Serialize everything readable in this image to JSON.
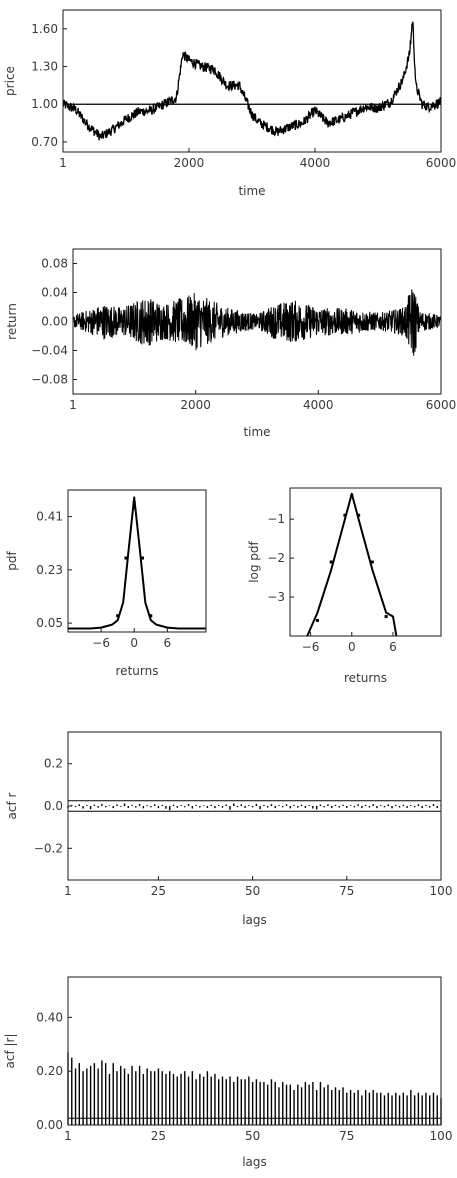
{
  "colors": {
    "line": "#000000",
    "frame": "#1a1a1a",
    "text": "#3a3a3a",
    "background": "#ffffff"
  },
  "chart_data": [
    {
      "id": "price",
      "type": "line",
      "title": "",
      "xlabel": "time",
      "ylabel": "price",
      "xlim": [
        1,
        6000
      ],
      "ylim": [
        0.62,
        1.75
      ],
      "xticks": [
        1,
        2000,
        4000,
        6000
      ],
      "xtick_labels": [
        "1",
        "2000",
        "4000",
        "6000"
      ],
      "yticks": [
        0.7,
        1.0,
        1.3,
        1.6
      ],
      "ytick_labels": [
        "0.70",
        "1.00",
        "1.30",
        "1.60"
      ],
      "reference_line": 1.0,
      "grid": false,
      "series": [
        {
          "x": [
            1,
            200,
            400,
            600,
            800,
            1000,
            1200,
            1400,
            1600,
            1800,
            1900,
            2000,
            2200,
            2400,
            2600,
            2800,
            3000,
            3100,
            3200,
            3400,
            3600,
            3800,
            4000,
            4200,
            4400,
            4600,
            4800,
            5000,
            5200,
            5400,
            5500,
            5550,
            5600,
            5700,
            5800,
            6000
          ],
          "y": [
            1.0,
            0.96,
            0.83,
            0.74,
            0.8,
            0.88,
            0.94,
            0.95,
            1.0,
            1.05,
            1.4,
            1.35,
            1.3,
            1.28,
            1.15,
            1.15,
            0.92,
            0.86,
            0.83,
            0.78,
            0.82,
            0.85,
            0.95,
            0.85,
            0.88,
            0.93,
            0.98,
            0.97,
            1.02,
            1.2,
            1.4,
            1.68,
            1.15,
            1.0,
            0.98,
            1.02
          ]
        }
      ]
    },
    {
      "id": "return",
      "type": "line",
      "title": "",
      "xlabel": "time",
      "ylabel": "return",
      "xlim": [
        1,
        6000
      ],
      "ylim": [
        -0.1,
        0.1
      ],
      "xticks": [
        1,
        2000,
        4000,
        6000
      ],
      "xtick_labels": [
        "1",
        "2000",
        "4000",
        "6000"
      ],
      "yticks": [
        -0.08,
        -0.04,
        0.0,
        0.04,
        0.08
      ],
      "ytick_labels": [
        "−0.08",
        "−0.04",
        "0.00",
        "0.04",
        "0.08"
      ],
      "grid": false,
      "series": [
        {
          "x": [
            1,
            500,
            800,
            1200,
            1500,
            2000,
            2500,
            3000,
            3300,
            3600,
            4000,
            4500,
            5000,
            5400,
            5550,
            5650,
            6000
          ],
          "amplitude": [
            0.008,
            0.025,
            0.02,
            0.035,
            0.025,
            0.04,
            0.02,
            0.01,
            0.025,
            0.03,
            0.02,
            0.018,
            0.012,
            0.02,
            0.055,
            0.015,
            0.008
          ]
        }
      ]
    },
    {
      "id": "pdf",
      "type": "line",
      "title": "",
      "xlabel": "returns",
      "ylabel": "pdf",
      "xlim": [
        -12,
        13
      ],
      "ylim": [
        0.02,
        0.5
      ],
      "xticks": [
        -6,
        0,
        6
      ],
      "xtick_labels": [
        "−6",
        "0",
        "6"
      ],
      "yticks": [
        0.05,
        0.23,
        0.41
      ],
      "ytick_labels": [
        "0.05",
        "0.23",
        "0.41"
      ],
      "grid": false,
      "series": [
        {
          "x": [
            -12,
            -8,
            -6,
            -4,
            -3,
            -2,
            -1,
            0,
            1,
            2,
            3,
            4,
            6,
            8,
            13
          ],
          "y": [
            0.032,
            0.032,
            0.035,
            0.045,
            0.06,
            0.12,
            0.3,
            0.475,
            0.3,
            0.12,
            0.06,
            0.045,
            0.035,
            0.032,
            0.032
          ]
        }
      ],
      "points": {
        "x": [
          -1.5,
          0,
          1.5,
          -3,
          3
        ],
        "y": [
          0.27,
          0.44,
          0.27,
          0.075,
          0.075
        ]
      }
    },
    {
      "id": "log-pdf",
      "type": "line",
      "title": "",
      "xlabel": "returns",
      "ylabel": "log pdf",
      "xlim": [
        -9,
        13
      ],
      "ylim": [
        -4.0,
        -0.2
      ],
      "xticks": [
        -6,
        0,
        6
      ],
      "xtick_labels": [
        "−6",
        "0",
        "6"
      ],
      "yticks": [
        -3,
        -2,
        -1
      ],
      "ytick_labels": [
        "−3",
        "−2",
        "−1"
      ],
      "grid": false,
      "series": [
        {
          "x": [
            -6.5,
            -5,
            -3,
            -1,
            0,
            1,
            3,
            5,
            6,
            6.5
          ],
          "y": [
            -4.0,
            -3.4,
            -2.3,
            -1.0,
            -0.35,
            -1.0,
            -2.3,
            -3.4,
            -3.5,
            -4.0
          ]
        }
      ],
      "points": {
        "x": [
          -3,
          -1,
          0,
          1,
          3,
          -5,
          5
        ],
        "y": [
          -2.1,
          -0.9,
          -0.4,
          -0.9,
          -2.1,
          -3.6,
          -3.5
        ]
      }
    },
    {
      "id": "acf-r",
      "type": "bar",
      "title": "",
      "xlabel": "lags",
      "ylabel": "acf r",
      "xlim": [
        1,
        100
      ],
      "ylim": [
        -0.35,
        0.35
      ],
      "xticks": [
        1,
        25,
        50,
        75,
        100
      ],
      "xtick_labels": [
        "1",
        "25",
        "50",
        "75",
        "100"
      ],
      "yticks": [
        -0.2,
        0.0,
        0.2
      ],
      "ytick_labels": [
        "−0.2",
        "0.0",
        "0.2"
      ],
      "confidence_band": 0.025,
      "grid": false,
      "values": [
        -0.01,
        0.005,
        -0.005,
        0.008,
        -0.012,
        0.004,
        -0.015,
        0.006,
        -0.008,
        0.01,
        -0.006,
        0.003,
        -0.01,
        0.007,
        -0.004,
        0.012,
        -0.009,
        0.005,
        -0.007,
        0.009,
        -0.011,
        0.004,
        -0.006,
        0.008,
        -0.01,
        0.005,
        -0.013,
        -0.02,
        0.006,
        -0.008,
        0.004,
        -0.006,
        0.009,
        -0.012,
        0.005,
        -0.007,
        0.003,
        -0.009,
        0.006,
        -0.01,
        0.004,
        -0.008,
        0.007,
        -0.018,
        0.012,
        -0.005,
        0.008,
        -0.009,
        0.004,
        -0.006,
        0.01,
        -0.015,
        0.005,
        -0.007,
        0.009,
        -0.01,
        0.004,
        -0.006,
        0.008,
        -0.011,
        0.005,
        -0.008,
        0.006,
        -0.009,
        0.004,
        -0.012,
        -0.016,
        0.007,
        -0.006,
        0.008,
        -0.01,
        0.005,
        -0.007,
        0.006,
        -0.009,
        0.004,
        -0.006,
        0.008,
        -0.01,
        0.005,
        -0.007,
        0.009,
        -0.01,
        0.004,
        -0.006,
        0.008,
        -0.011,
        0.005,
        -0.007,
        0.006,
        -0.009,
        0.004,
        -0.006,
        0.008,
        -0.01,
        0.005,
        -0.007,
        0.009,
        -0.01,
        0.004
      ]
    },
    {
      "id": "acf-abs-r",
      "type": "bar",
      "title": "",
      "xlabel": "lags",
      "ylabel": "acf |r|",
      "xlim": [
        1,
        100
      ],
      "ylim": [
        0.0,
        0.55
      ],
      "xticks": [
        1,
        25,
        50,
        75,
        100
      ],
      "xtick_labels": [
        "1",
        "25",
        "50",
        "75",
        "100"
      ],
      "yticks": [
        0.0,
        0.2,
        0.4
      ],
      "ytick_labels": [
        "0.00",
        "0.20",
        "0.40"
      ],
      "confidence_band": 0.025,
      "grid": false,
      "values": [
        0.27,
        0.25,
        0.21,
        0.23,
        0.2,
        0.21,
        0.22,
        0.23,
        0.21,
        0.24,
        0.23,
        0.19,
        0.23,
        0.2,
        0.22,
        0.21,
        0.19,
        0.22,
        0.2,
        0.22,
        0.19,
        0.21,
        0.2,
        0.2,
        0.21,
        0.2,
        0.19,
        0.2,
        0.19,
        0.18,
        0.19,
        0.2,
        0.18,
        0.2,
        0.17,
        0.19,
        0.18,
        0.2,
        0.18,
        0.19,
        0.17,
        0.18,
        0.17,
        0.18,
        0.16,
        0.18,
        0.17,
        0.17,
        0.18,
        0.16,
        0.17,
        0.16,
        0.16,
        0.15,
        0.17,
        0.16,
        0.14,
        0.16,
        0.15,
        0.15,
        0.13,
        0.15,
        0.14,
        0.16,
        0.15,
        0.16,
        0.13,
        0.16,
        0.14,
        0.15,
        0.13,
        0.14,
        0.13,
        0.14,
        0.12,
        0.13,
        0.12,
        0.13,
        0.11,
        0.13,
        0.12,
        0.13,
        0.12,
        0.12,
        0.11,
        0.12,
        0.11,
        0.12,
        0.11,
        0.12,
        0.11,
        0.13,
        0.11,
        0.12,
        0.11,
        0.12,
        0.11,
        0.12,
        0.11,
        0.1
      ]
    }
  ]
}
